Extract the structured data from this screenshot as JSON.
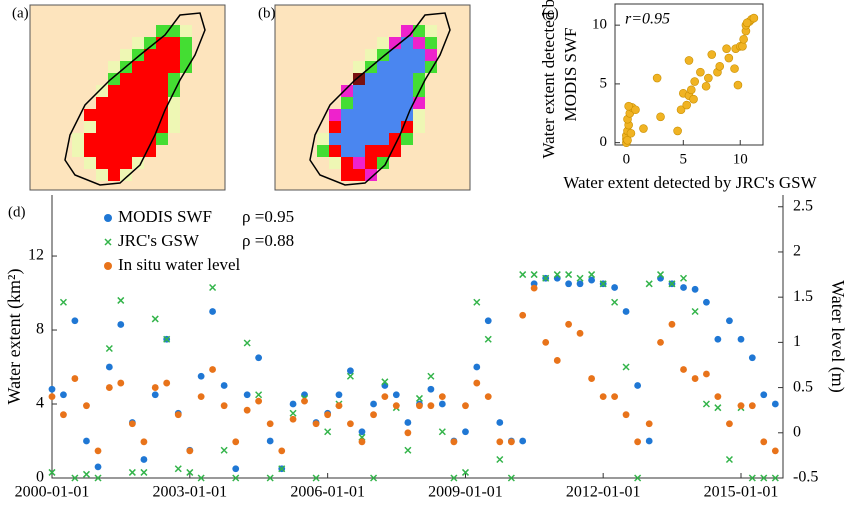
{
  "chart_data": [
    {
      "type": "map",
      "label": "(a)"
    },
    {
      "type": "map",
      "label": "(b)"
    },
    {
      "type": "scatter",
      "label": "(c)",
      "annotation": "r=0.95",
      "xlabel": "Water extent detected by JRC's GSW",
      "ylabel": [
        "Water extent detected by",
        "MODIS SWF"
      ],
      "xlim": [
        -1,
        12
      ],
      "ylim": [
        -0.2,
        11.8
      ],
      "xticks": [
        0,
        5,
        10
      ],
      "yticks": [
        0,
        5,
        10
      ],
      "series": [
        {
          "color": "#f0b323",
          "x": [
            0,
            0,
            0,
            0.1,
            0.2,
            0.1,
            0.3,
            0.5,
            0.2,
            0.8,
            0.1,
            0.4,
            1.5,
            2.7,
            3,
            4.5,
            4.8,
            5,
            5.3,
            5.5,
            5.7,
            5.9,
            6,
            5.5,
            6.5,
            7,
            7.2,
            7.5,
            8,
            8.2,
            8.8,
            9,
            9.5,
            9.6,
            10,
            10.2,
            10.3,
            10.5,
            10.5,
            10.8,
            11,
            11.2,
            10.6,
            9.8
          ],
          "values": [
            0,
            0.3,
            0.6,
            1,
            1.5,
            2,
            2.5,
            3,
            3.1,
            2.8,
            0.2,
            0.8,
            1.2,
            5.5,
            2.2,
            1,
            2.8,
            4.2,
            3.2,
            4,
            4.5,
            3.7,
            5.2,
            7,
            6,
            4.8,
            5.5,
            7.5,
            6,
            6.5,
            8,
            7.2,
            6.3,
            8,
            8.2,
            8.2,
            8.8,
            9.5,
            10,
            10.3,
            10.5,
            10.6,
            10.2,
            4.9
          ]
        }
      ]
    },
    {
      "type": "scatter",
      "label": "(d)",
      "ylabel": "Water extent (km²)",
      "y2label": "Water level (m)",
      "annotations": [
        {
          "text": "ρ =0.95",
          "color": "#1f77d4"
        },
        {
          "text": "ρ =0.88",
          "color": "#33b44a"
        }
      ],
      "xlim": [
        "2000-01-01",
        "2015-12-01"
      ],
      "xticks": [
        "2000-01-01",
        "2003-01-01",
        "2006-01-01",
        "2009-01-01",
        "2012-01-01",
        "2015-01-01"
      ],
      "ylim": [
        0,
        15.3
      ],
      "yticks": [
        0,
        4,
        8,
        12
      ],
      "y2lim": [
        -0.5,
        2.63
      ],
      "y2ticks": [
        -0.5,
        0,
        0.5,
        1,
        1.5,
        2,
        2.5
      ],
      "x": [
        "2000-01-01",
        "2000-04-01",
        "2000-07-01",
        "2000-10-01",
        "2001-01-01",
        "2001-04-01",
        "2001-07-01",
        "2001-10-01",
        "2002-01-01",
        "2002-04-01",
        "2002-07-01",
        "2002-10-01",
        "2003-01-01",
        "2003-04-01",
        "2003-07-01",
        "2003-10-01",
        "2004-01-01",
        "2004-04-01",
        "2004-07-01",
        "2004-10-01",
        "2005-01-01",
        "2005-04-01",
        "2005-07-01",
        "2005-10-01",
        "2006-01-01",
        "2006-04-01",
        "2006-07-01",
        "2006-10-01",
        "2007-01-01",
        "2007-04-01",
        "2007-07-01",
        "2007-10-01",
        "2008-01-01",
        "2008-04-01",
        "2008-07-01",
        "2008-10-01",
        "2009-01-01",
        "2009-04-01",
        "2009-07-01",
        "2009-10-01",
        "2010-01-01",
        "2010-04-01",
        "2010-07-01",
        "2010-10-01",
        "2011-01-01",
        "2011-04-01",
        "2011-07-01",
        "2011-10-01",
        "2012-01-01",
        "2012-04-01",
        "2012-07-01",
        "2012-10-01",
        "2013-01-01",
        "2013-04-01",
        "2013-07-01",
        "2013-10-01",
        "2014-01-01",
        "2014-04-01",
        "2014-07-01",
        "2014-10-01",
        "2015-01-01",
        "2015-04-01",
        "2015-07-01",
        "2015-10-01"
      ],
      "series": [
        {
          "name": "MODIS SWF",
          "color": "#1f77d4",
          "marker": "circle",
          "values": [
            4.8,
            4.5,
            8.5,
            2.0,
            0.6,
            6.0,
            8.3,
            3.0,
            1.0,
            4.5,
            7.5,
            3.5,
            1.5,
            5.5,
            9.0,
            5.0,
            0.5,
            4.5,
            6.5,
            2.0,
            0.5,
            4.0,
            4.5,
            3.0,
            3.5,
            4.5,
            5.8,
            2.5,
            4.0,
            5.0,
            4.5,
            3.0,
            4.0,
            4.8,
            4.0,
            2.0,
            2.5,
            6.0,
            8.5,
            3.0,
            2.0,
            2.0,
            10.5,
            10.8,
            10.8,
            10.5,
            10.5,
            10.7,
            10.5,
            10.3,
            9.0,
            5.0,
            2.0,
            10.8,
            10.5,
            10.3,
            10.2,
            9.5,
            7.5,
            8.5,
            7.5,
            6.5,
            4.5,
            4.0
          ]
        },
        {
          "name": "JRC's GSW",
          "color": "#33b44a",
          "marker": "x",
          "values": [
            0.3,
            9.5,
            0,
            0.2,
            0,
            7,
            9.6,
            0.3,
            0.3,
            8.6,
            7.5,
            0.5,
            0.3,
            0,
            10.3,
            1.5,
            0,
            7.3,
            4.5,
            0,
            0.5,
            3.5,
            4.3,
            0,
            2.5,
            4.0,
            5.5,
            2.2,
            0,
            5.2,
            3.8,
            1.5,
            4.3,
            5.5,
            2.5,
            0,
            0.3,
            9.5,
            7.5,
            1.0,
            0,
            11.0,
            11.0,
            10.8,
            11.0,
            11.0,
            10.8,
            11.0,
            10.5,
            9.5,
            6.0,
            0,
            10.5,
            11.0,
            10.5,
            10.8,
            9.0,
            4.0,
            3.8,
            1.0,
            3.8,
            0,
            0,
            0
          ]
        },
        {
          "name": "In situ water level",
          "color": "#e8731a",
          "marker": "circle",
          "axis": "y2",
          "values": [
            0.4,
            0.2,
            0.6,
            0.3,
            -0.2,
            0.5,
            0.55,
            0.1,
            -0.1,
            0.5,
            0.55,
            0.2,
            -0.2,
            0.4,
            0.7,
            0.3,
            -0.1,
            0.25,
            0.35,
            0.1,
            -0.2,
            0.15,
            0.35,
            0.1,
            0.2,
            0.3,
            0.1,
            -0.1,
            0.2,
            0.4,
            0.3,
            0.0,
            0.3,
            0.3,
            0.4,
            -0.1,
            0.3,
            0.55,
            0.4,
            -0.1,
            -0.1,
            1.3,
            1.6,
            1.0,
            0.8,
            1.2,
            1.1,
            0.6,
            0.4,
            0.4,
            0.2,
            -0.1,
            0.1,
            1.0,
            1.2,
            0.7,
            0.6,
            0.65,
            0.4,
            0.1,
            0.3,
            0.3,
            -0.1,
            -0.2
          ]
        }
      ]
    }
  ]
}
